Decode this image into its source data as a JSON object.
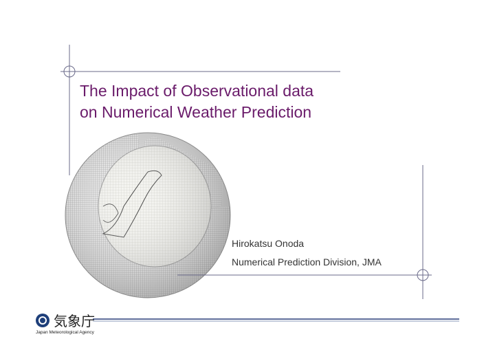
{
  "slide": {
    "title": [
      "The Impact of Observational data",
      "on Numerical Weather Prediction"
    ],
    "author": "Hirokatsu Onoda",
    "affiliation": "Numerical Prediction Division, JMA",
    "logo": {
      "name": "気象庁",
      "english": "Japan Meteorological Agency"
    }
  }
}
